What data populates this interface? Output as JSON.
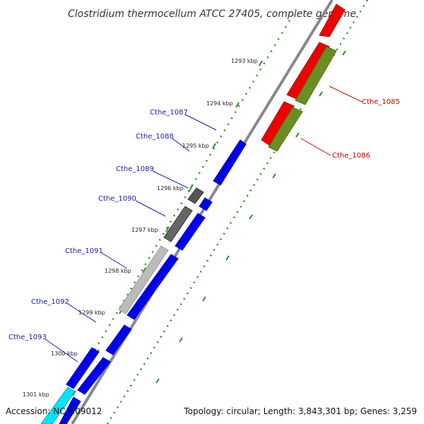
{
  "title": "Clostridium thermocellum ATCC 27405, complete genome",
  "footer": {
    "accession": "Accession: NC_009012",
    "summary": "Topology: circular; Length: 3,843,301 bp; Genes: 3,259"
  },
  "ticks": [
    "1293 kbp",
    "1294 kbp",
    "1295 kbp",
    "1296 kbp",
    "1297 kbp",
    "1298 kbp",
    "1299 kbp",
    "1300 kbp",
    "1301 kbp"
  ],
  "genes_blue": [
    "Cthe_1087",
    "Cthe_1088",
    "Cthe_1089",
    "Cthe_1090",
    "Cthe_1091",
    "Cthe_1092",
    "Cthe_1093"
  ],
  "genes_red": [
    "Cthe_1085",
    "Cthe_1086"
  ],
  "colors": {
    "cds_blue": "#0000ee",
    "cds_red": "#ee0000",
    "cds_olive": "#6b8e23",
    "gray_dark": "#555555",
    "gray_light": "#bbbbbb",
    "cyan": "#00e5ff",
    "backbone": "#888888",
    "dots": "#2e8b2e"
  }
}
